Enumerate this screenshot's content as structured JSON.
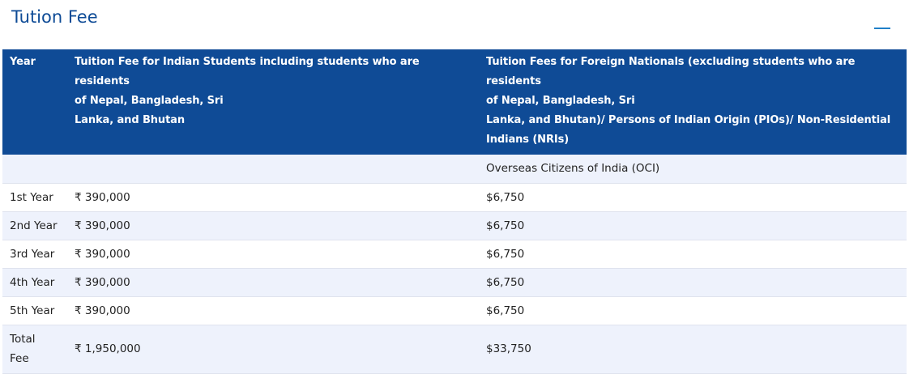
{
  "section": {
    "title": "Tution Fee"
  },
  "table": {
    "headers": {
      "year": "Year",
      "indian": "Tuition Fee for Indian Students including students who are residents\nof Nepal, Bangladesh, Sri\nLanka, and Bhutan",
      "foreign": "Tuition Fees for Foreign Nationals (excluding students who are residents\nof Nepal, Bangladesh, Sri\nLanka, and Bhutan)/ Persons of Indian Origin (PIOs)/ Non-Residential\nIndians (NRIs)"
    },
    "subheader": {
      "year": "",
      "indian": "",
      "foreign": "Overseas Citizens of India (OCI)"
    },
    "rows": [
      {
        "year": "1st Year",
        "indian": "₹ 390,000",
        "foreign": "$6,750"
      },
      {
        "year": "2nd Year",
        "indian": "₹ 390,000",
        "foreign": "$6,750"
      },
      {
        "year": "3rd Year",
        "indian": "₹ 390,000",
        "foreign": "$6,750"
      },
      {
        "year": "4th Year",
        "indian": "₹ 390,000",
        "foreign": "$6,750"
      },
      {
        "year": "5th Year",
        "indian": "₹ 390,000",
        "foreign": "$6,750"
      }
    ],
    "total": {
      "year": "Total\nFee",
      "indian": "₹ 1,950,000",
      "foreign": "$33,750"
    }
  }
}
